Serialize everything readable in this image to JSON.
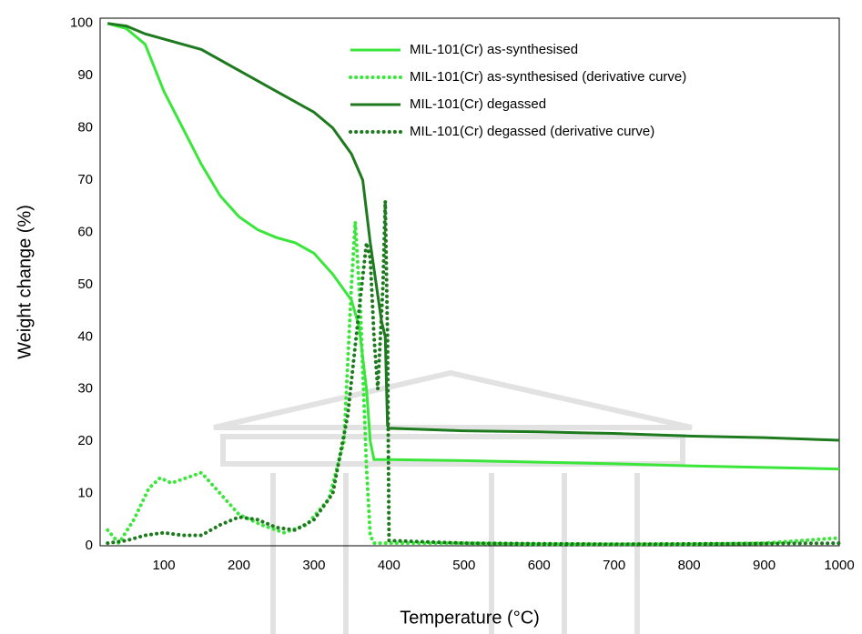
{
  "chart_data": {
    "type": "line",
    "x_label": "Temperature (°C)",
    "y_label": "Weight change (%)",
    "xlim": [
      15,
      1000
    ],
    "ylim": [
      0,
      101
    ],
    "xticks": [
      100,
      200,
      300,
      400,
      500,
      600,
      700,
      800,
      900,
      1000
    ],
    "yticks": [
      0,
      10,
      20,
      30,
      40,
      50,
      60,
      70,
      80,
      90,
      100
    ],
    "grid": false,
    "legend": "upper right",
    "series": [
      {
        "name": "MIL-101(Cr) as-synthesised",
        "color": "#3be63b",
        "style": "solid",
        "x": [
          25,
          50,
          75,
          100,
          125,
          150,
          175,
          200,
          225,
          250,
          275,
          300,
          325,
          350,
          360,
          370,
          375,
          380,
          400,
          500,
          600,
          700,
          800,
          900,
          1000
        ],
        "values": [
          100,
          99,
          96,
          87,
          80,
          73,
          67,
          63,
          60.5,
          59,
          58,
          56,
          52,
          47,
          42,
          30,
          20,
          16.5,
          16.5,
          16.3,
          16,
          15.7,
          15.3,
          15,
          14.7
        ]
      },
      {
        "name": "MIL-101(Cr) as-synthesised (derivative curve)",
        "color": "#3be63b",
        "style": "dotted",
        "x": [
          25,
          40,
          60,
          80,
          95,
          110,
          130,
          150,
          175,
          200,
          230,
          260,
          290,
          320,
          340,
          350,
          355,
          362,
          370,
          375,
          380,
          400,
          500,
          600,
          700,
          800,
          900,
          1000
        ],
        "values": [
          3,
          0.5,
          5,
          11,
          13,
          12,
          13,
          14,
          10,
          6,
          4,
          2.5,
          4,
          9,
          20,
          50,
          62,
          45,
          15,
          2,
          0.5,
          0.5,
          0.5,
          0.3,
          0.3,
          0.3,
          0.5,
          1.5
        ]
      },
      {
        "name": "MIL-101(Cr) degassed",
        "color": "#1e7a1e",
        "style": "solid",
        "x": [
          25,
          50,
          75,
          100,
          150,
          200,
          250,
          300,
          325,
          350,
          365,
          375,
          385,
          390,
          395,
          398,
          400,
          500,
          600,
          700,
          800,
          900,
          1000
        ],
        "values": [
          100,
          99.5,
          98,
          97,
          95,
          91,
          87,
          83,
          80,
          75,
          70,
          58,
          48,
          43,
          40,
          23,
          22.5,
          22,
          21.8,
          21.5,
          21,
          20.7,
          20.2
        ]
      },
      {
        "name": "MIL-101(Cr) degassed (derivative curve)",
        "color": "#1e7a1e",
        "style": "dotted",
        "x": [
          25,
          50,
          75,
          100,
          125,
          150,
          175,
          200,
          225,
          250,
          275,
          300,
          325,
          345,
          360,
          370,
          375,
          380,
          385,
          392,
          395,
          398,
          400,
          500,
          700,
          1000
        ],
        "values": [
          0.5,
          1,
          2,
          2.5,
          2,
          2,
          4,
          5.5,
          5,
          3.5,
          3,
          5,
          10,
          25,
          45,
          58,
          55,
          40,
          30,
          50,
          66,
          40,
          1,
          0.5,
          0.3,
          0.5
        ]
      }
    ]
  }
}
